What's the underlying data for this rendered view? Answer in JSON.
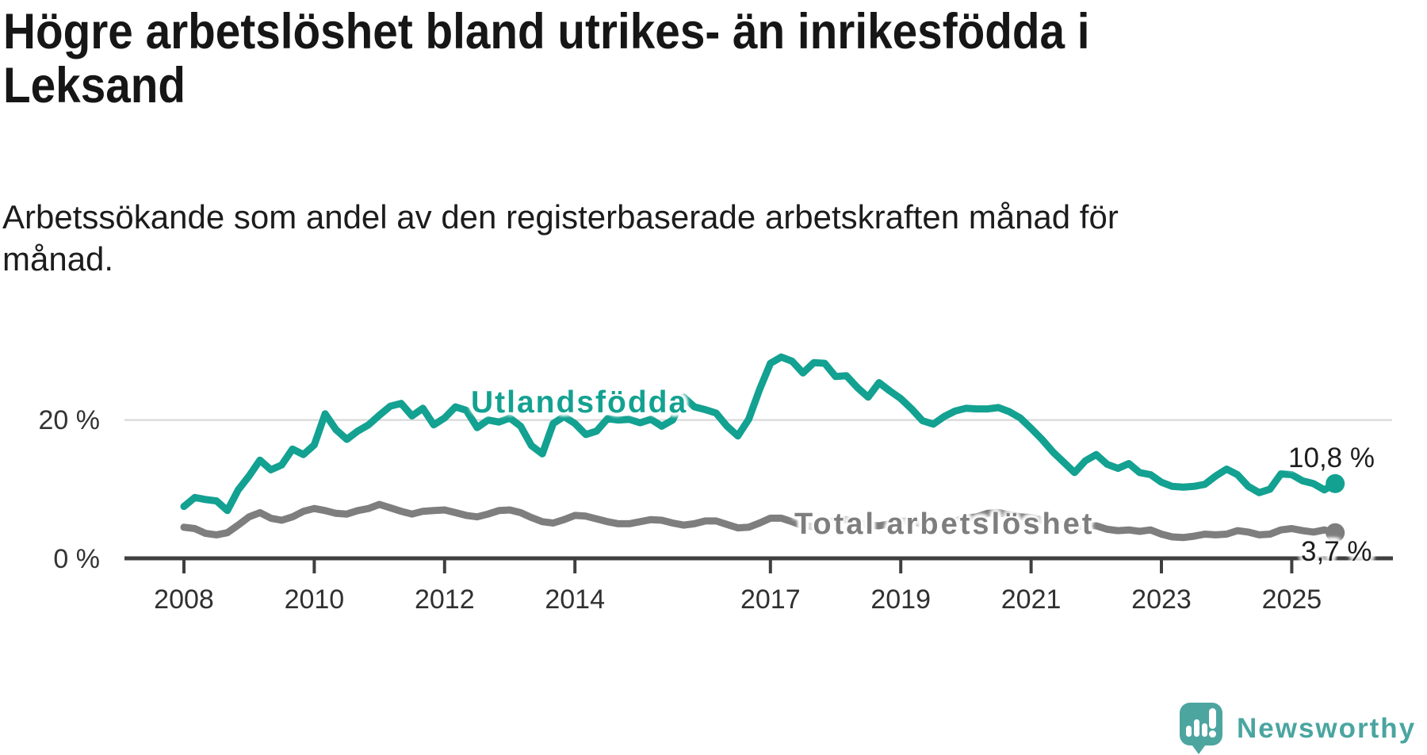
{
  "title": {
    "line1": "Högre arbetslöshet bland utrikes- än inrikesfödda i",
    "line2": "Leksand"
  },
  "subtitle": {
    "line1": "Arbetssökande som andel av den registerbaserade arbetskraften månad för",
    "line2": "månad."
  },
  "branding": {
    "logo_text": "Newsworthy",
    "icon": "newsworthy-speech-bubble-bar-chart-icon"
  },
  "colors": {
    "accent_teal": "#13a191",
    "line_gray": "#7e7e7e",
    "grid": "#dcdcdc",
    "axis": "#3f3f3f",
    "title_text": "#161616",
    "value_text": "#1d1d1d",
    "brand_teal": "#4da5a0"
  },
  "chart_data": {
    "type": "line",
    "title": "Högre arbetslöshet bland utrikes- än inrikesfödda i Leksand",
    "subtitle": "Arbetssökande som andel av den registerbaserade arbetskraften månad för månad.",
    "xlabel": "",
    "ylabel": "%",
    "ylim": [
      0,
      32
    ],
    "xlim": [
      2008,
      2025.75
    ],
    "grid": "single horizontal gridline at 20 %",
    "gridlines_y": [
      20
    ],
    "legend": "inline series labels on chart",
    "sampling": "monthly data shown; values estimated every 2 months from pixels",
    "x_axis": {
      "ticks": [
        2008,
        2010,
        2012,
        2014,
        2017,
        2019,
        2021,
        2023,
        2025
      ],
      "labels": [
        "2008",
        "2010",
        "2012",
        "2014",
        "2017",
        "2019",
        "2021",
        "2023",
        "2025"
      ]
    },
    "y_axis": {
      "ticks": [
        0,
        20
      ],
      "labels": [
        "0 %",
        "20 %"
      ],
      "unit": "%"
    },
    "x": [
      2008,
      2008.167,
      2008.333,
      2008.5,
      2008.667,
      2008.833,
      2009,
      2009.167,
      2009.333,
      2009.5,
      2009.667,
      2009.833,
      2010,
      2010.167,
      2010.333,
      2010.5,
      2010.667,
      2010.833,
      2011,
      2011.167,
      2011.333,
      2011.5,
      2011.667,
      2011.833,
      2012,
      2012.167,
      2012.333,
      2012.5,
      2012.667,
      2012.833,
      2013,
      2013.167,
      2013.333,
      2013.5,
      2013.667,
      2013.833,
      2014,
      2014.167,
      2014.333,
      2014.5,
      2014.667,
      2014.833,
      2015,
      2015.167,
      2015.333,
      2015.5,
      2015.667,
      2015.833,
      2016,
      2016.167,
      2016.333,
      2016.5,
      2016.667,
      2016.833,
      2017,
      2017.167,
      2017.333,
      2017.5,
      2017.667,
      2017.833,
      2018,
      2018.167,
      2018.333,
      2018.5,
      2018.667,
      2018.833,
      2019,
      2019.167,
      2019.333,
      2019.5,
      2019.667,
      2019.833,
      2020,
      2020.167,
      2020.333,
      2020.5,
      2020.667,
      2020.833,
      2021,
      2021.167,
      2021.333,
      2021.5,
      2021.667,
      2021.833,
      2022,
      2022.167,
      2022.333,
      2022.5,
      2022.667,
      2022.833,
      2023,
      2023.167,
      2023.333,
      2023.5,
      2023.667,
      2023.833,
      2024,
      2024.167,
      2024.333,
      2024.5,
      2024.667,
      2024.833,
      2025,
      2025.167,
      2025.333,
      2025.5,
      2025.667
    ],
    "series": [
      {
        "name": "Utlandsfödda",
        "slug": "utlandsfodda",
        "color": "#13a191",
        "end_value": 10.8,
        "end_label": "10,8 %",
        "values": [
          7.5,
          8.8,
          8.5,
          8.3,
          6.9,
          9.9,
          11.9,
          14.2,
          12.8,
          13.5,
          15.8,
          15.0,
          16.4,
          20.9,
          18.6,
          17.2,
          18.4,
          19.3,
          20.7,
          22.0,
          22.4,
          20.6,
          21.7,
          19.3,
          20.3,
          21.9,
          21.4,
          18.9,
          20.0,
          19.7,
          20.3,
          19.1,
          16.3,
          15.1,
          19.5,
          20.5,
          19.5,
          17.9,
          18.4,
          20.2,
          20.0,
          20.1,
          19.6,
          20.1,
          19.1,
          20.0,
          23.3,
          21.9,
          21.5,
          21.0,
          19.1,
          17.7,
          20.1,
          24.4,
          28.2,
          29.1,
          28.5,
          26.8,
          28.3,
          28.2,
          26.3,
          26.4,
          24.7,
          23.3,
          25.4,
          24.2,
          23.1,
          21.6,
          19.9,
          19.4,
          20.5,
          21.3,
          21.7,
          21.6,
          21.6,
          21.8,
          21.2,
          20.3,
          18.8,
          17.2,
          15.4,
          13.9,
          12.4,
          14.1,
          15.0,
          13.6,
          13.0,
          13.7,
          12.4,
          12.1,
          11.0,
          10.4,
          10.3,
          10.4,
          10.7,
          11.9,
          12.9,
          12.1,
          10.4,
          9.5,
          10.0,
          12.2,
          12.1,
          11.2,
          10.8,
          9.9,
          10.8
        ]
      },
      {
        "name": "Total arbetslöshet",
        "slug": "total-arbetsloshet",
        "color": "#7e7e7e",
        "end_value": 3.7,
        "end_label": "3,7 %",
        "values": [
          4.5,
          4.3,
          3.6,
          3.4,
          3.7,
          4.8,
          6.0,
          6.6,
          5.8,
          5.5,
          6.0,
          6.8,
          7.2,
          6.9,
          6.5,
          6.4,
          6.9,
          7.2,
          7.8,
          7.3,
          6.8,
          6.4,
          6.8,
          6.9,
          7.0,
          6.6,
          6.2,
          6.0,
          6.4,
          6.9,
          7.0,
          6.6,
          5.9,
          5.3,
          5.1,
          5.6,
          6.2,
          6.1,
          5.7,
          5.3,
          5.0,
          5.0,
          5.3,
          5.6,
          5.5,
          5.1,
          4.8,
          5.0,
          5.4,
          5.4,
          4.9,
          4.4,
          4.5,
          5.1,
          5.8,
          5.8,
          5.3,
          4.7,
          4.6,
          5.0,
          5.5,
          5.6,
          5.2,
          4.8,
          4.7,
          5.0,
          5.4,
          5.3,
          5.0,
          4.8,
          5.0,
          5.4,
          5.8,
          6.0,
          6.5,
          6.6,
          6.3,
          6.0,
          5.9,
          5.5,
          5.1,
          4.8,
          4.6,
          4.7,
          4.7,
          4.2,
          4.0,
          4.1,
          3.9,
          4.1,
          3.5,
          3.1,
          3.0,
          3.2,
          3.5,
          3.4,
          3.5,
          4.0,
          3.8,
          3.4,
          3.5,
          4.1,
          4.3,
          4.0,
          3.8,
          4.1,
          3.7
        ]
      }
    ]
  }
}
